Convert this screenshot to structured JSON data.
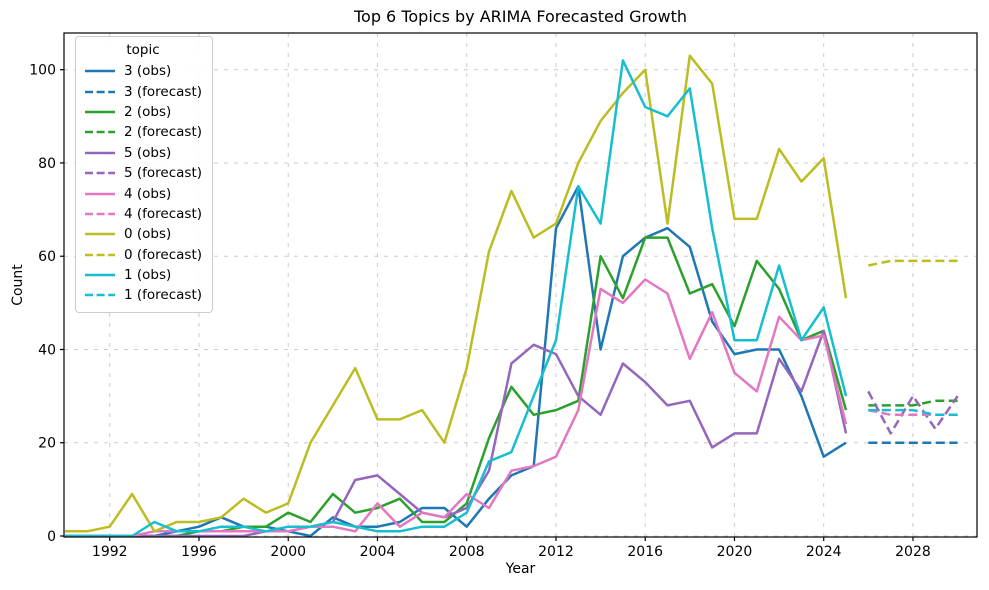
{
  "chart_data": {
    "type": "line",
    "title": "Top 6 Topics by ARIMA Forecasted Growth",
    "xlabel": "Year",
    "ylabel": "Count",
    "legend_title": "topic",
    "legend_position": "upper left",
    "grid": true,
    "x_ticks": [
      1992,
      1996,
      2000,
      2004,
      2008,
      2012,
      2016,
      2020,
      2024,
      2028
    ],
    "y_ticks": [
      0,
      20,
      40,
      60,
      80,
      100
    ],
    "xlim": [
      1989.95,
      2030.87
    ],
    "ylim": [
      0,
      108
    ],
    "observed_year_range": [
      1990,
      2025
    ],
    "forecast_year_range": [
      2026,
      2030
    ],
    "series": [
      {
        "label": "3 (obs)",
        "topic": "3",
        "kind": "obs",
        "color": "#1f77b4",
        "style": "solid",
        "x_start": 1990,
        "values": [
          0,
          0,
          0,
          0,
          0,
          1,
          2,
          4,
          2,
          2,
          1,
          0,
          4,
          2,
          2,
          3,
          6,
          6,
          2,
          8,
          13,
          15,
          66,
          75,
          40,
          60,
          64,
          66,
          62,
          46,
          39,
          40,
          40,
          30,
          17,
          20
        ]
      },
      {
        "label": "3 (forecast)",
        "topic": "3",
        "kind": "forecast",
        "color": "#1f77b4",
        "style": "dashed",
        "x_start": 2026,
        "values": [
          20,
          20,
          20,
          20,
          20
        ]
      },
      {
        "label": "2 (obs)",
        "topic": "2",
        "kind": "obs",
        "color": "#2ca02c",
        "style": "solid",
        "x_start": 1990,
        "values": [
          0,
          0,
          0,
          0,
          0,
          0,
          1,
          1,
          2,
          2,
          5,
          3,
          9,
          5,
          6,
          8,
          3,
          3,
          7,
          21,
          32,
          26,
          27,
          29,
          60,
          51,
          64,
          64,
          52,
          54,
          45,
          59,
          53,
          42,
          44,
          27
        ]
      },
      {
        "label": "2 (forecast)",
        "topic": "2",
        "kind": "forecast",
        "color": "#2ca02c",
        "style": "dashed",
        "x_start": 2026,
        "values": [
          28,
          28,
          28,
          29,
          29
        ]
      },
      {
        "label": "5 (obs)",
        "topic": "5",
        "kind": "obs",
        "color": "#9467bd",
        "style": "solid",
        "x_start": 1990,
        "values": [
          0,
          0,
          0,
          0,
          0,
          0,
          0,
          0,
          0,
          1,
          1,
          2,
          3,
          12,
          13,
          9,
          5,
          4,
          6,
          14,
          37,
          41,
          39,
          30,
          26,
          37,
          33,
          28,
          29,
          19,
          22,
          22,
          38,
          31,
          44,
          22
        ]
      },
      {
        "label": "5 (forecast)",
        "topic": "5",
        "kind": "forecast",
        "color": "#9467bd",
        "style": "dashed",
        "x_start": 2026,
        "values": [
          31,
          22,
          30,
          23,
          30
        ]
      },
      {
        "label": "4 (obs)",
        "topic": "4",
        "kind": "obs",
        "color": "#e377c2",
        "style": "solid",
        "x_start": 1990,
        "values": [
          0,
          0,
          0,
          0,
          1,
          1,
          1,
          1,
          1,
          1,
          1,
          2,
          2,
          1,
          7,
          2,
          5,
          4,
          9,
          6,
          14,
          15,
          17,
          27,
          53,
          50,
          55,
          52,
          38,
          48,
          35,
          31,
          47,
          42,
          43,
          24
        ]
      },
      {
        "label": "4 (forecast)",
        "topic": "4",
        "kind": "forecast",
        "color": "#e377c2",
        "style": "dashed",
        "x_start": 2026,
        "values": [
          27,
          26,
          26,
          26,
          26
        ]
      },
      {
        "label": "0 (obs)",
        "topic": "0",
        "kind": "obs",
        "color": "#bcbd22",
        "style": "solid",
        "x_start": 1990,
        "values": [
          1,
          1,
          2,
          9,
          1,
          3,
          3,
          4,
          8,
          5,
          7,
          20,
          28,
          36,
          25,
          25,
          27,
          20,
          36,
          61,
          74,
          64,
          67,
          80,
          89,
          95,
          100,
          67,
          103,
          97,
          68,
          68,
          83,
          76,
          81,
          51
        ]
      },
      {
        "label": "0 (forecast)",
        "topic": "0",
        "kind": "forecast",
        "color": "#bcbd22",
        "style": "dashed",
        "x_start": 2026,
        "values": [
          58,
          59,
          59,
          59,
          59
        ]
      },
      {
        "label": "1 (obs)",
        "topic": "1",
        "kind": "obs",
        "color": "#17becf",
        "style": "solid",
        "x_start": 1990,
        "values": [
          0,
          0,
          0,
          0,
          3,
          1,
          1,
          2,
          2,
          1,
          2,
          2,
          3,
          2,
          1,
          1,
          2,
          2,
          5,
          16,
          18,
          30,
          42,
          75,
          67,
          102,
          92,
          90,
          96,
          66,
          42,
          42,
          58,
          42,
          49,
          30
        ]
      },
      {
        "label": "1 (forecast)",
        "topic": "1",
        "kind": "forecast",
        "color": "#17becf",
        "style": "dashed",
        "x_start": 2026,
        "values": [
          27,
          27,
          27,
          26,
          26
        ]
      }
    ],
    "style": {
      "grid_color": "#cccccc",
      "spine_color": "#000000",
      "background": "#ffffff",
      "line_width": 2.5
    }
  }
}
